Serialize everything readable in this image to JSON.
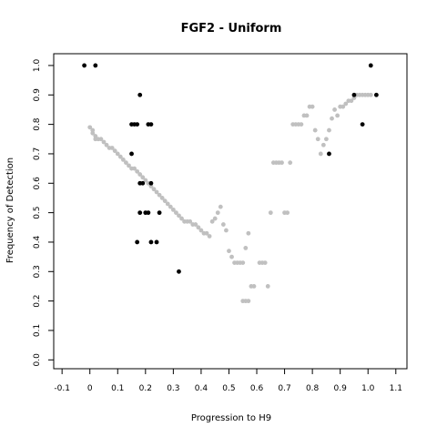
{
  "chart_data": {
    "type": "scatter",
    "title": "FGF2 - Uniform",
    "xlabel": "Progression to H9",
    "ylabel": "Frequency of Detection",
    "xlim": [
      -0.13,
      1.14
    ],
    "ylim": [
      -0.03,
      1.04
    ],
    "xticks": [
      "-0.1",
      "0",
      "0.1",
      "0.2",
      "0.3",
      "0.4",
      "0.5",
      "0.6",
      "0.7",
      "0.8",
      "0.9",
      "1.0",
      "1.1"
    ],
    "yticks": [
      "0.0",
      "0.1",
      "0.2",
      "0.3",
      "0.4",
      "0.5",
      "0.6",
      "0.7",
      "0.8",
      "0.9",
      "1.0"
    ],
    "grid": false,
    "legend": "none",
    "series": [
      {
        "color": "#c0c0c0",
        "points": [
          [
            0.0,
            0.79
          ],
          [
            0.01,
            0.78
          ],
          [
            0.01,
            0.77
          ],
          [
            0.02,
            0.76
          ],
          [
            0.02,
            0.75
          ],
          [
            0.03,
            0.75
          ],
          [
            0.04,
            0.75
          ],
          [
            0.05,
            0.74
          ],
          [
            0.06,
            0.73
          ],
          [
            0.07,
            0.72
          ],
          [
            0.08,
            0.72
          ],
          [
            0.09,
            0.71
          ],
          [
            0.1,
            0.7
          ],
          [
            0.11,
            0.69
          ],
          [
            0.12,
            0.68
          ],
          [
            0.13,
            0.67
          ],
          [
            0.14,
            0.66
          ],
          [
            0.15,
            0.65
          ],
          [
            0.16,
            0.65
          ],
          [
            0.17,
            0.64
          ],
          [
            0.18,
            0.63
          ],
          [
            0.19,
            0.62
          ],
          [
            0.2,
            0.61
          ],
          [
            0.21,
            0.6
          ],
          [
            0.22,
            0.59
          ],
          [
            0.23,
            0.58
          ],
          [
            0.24,
            0.57
          ],
          [
            0.25,
            0.56
          ],
          [
            0.26,
            0.55
          ],
          [
            0.27,
            0.54
          ],
          [
            0.28,
            0.53
          ],
          [
            0.29,
            0.52
          ],
          [
            0.3,
            0.51
          ],
          [
            0.31,
            0.5
          ],
          [
            0.32,
            0.49
          ],
          [
            0.33,
            0.48
          ],
          [
            0.34,
            0.47
          ],
          [
            0.35,
            0.47
          ],
          [
            0.36,
            0.47
          ],
          [
            0.37,
            0.46
          ],
          [
            0.38,
            0.46
          ],
          [
            0.39,
            0.45
          ],
          [
            0.4,
            0.44
          ],
          [
            0.41,
            0.43
          ],
          [
            0.42,
            0.43
          ],
          [
            0.43,
            0.42
          ],
          [
            0.44,
            0.47
          ],
          [
            0.45,
            0.48
          ],
          [
            0.46,
            0.5
          ],
          [
            0.47,
            0.52
          ],
          [
            0.48,
            0.46
          ],
          [
            0.49,
            0.44
          ],
          [
            0.5,
            0.37
          ],
          [
            0.51,
            0.35
          ],
          [
            0.52,
            0.33
          ],
          [
            0.53,
            0.33
          ],
          [
            0.54,
            0.33
          ],
          [
            0.55,
            0.33
          ],
          [
            0.56,
            0.38
          ],
          [
            0.57,
            0.43
          ],
          [
            0.55,
            0.2
          ],
          [
            0.56,
            0.2
          ],
          [
            0.57,
            0.2
          ],
          [
            0.58,
            0.25
          ],
          [
            0.59,
            0.25
          ],
          [
            0.61,
            0.33
          ],
          [
            0.62,
            0.33
          ],
          [
            0.63,
            0.33
          ],
          [
            0.64,
            0.25
          ],
          [
            0.65,
            0.5
          ],
          [
            0.66,
            0.67
          ],
          [
            0.67,
            0.67
          ],
          [
            0.68,
            0.67
          ],
          [
            0.69,
            0.67
          ],
          [
            0.7,
            0.5
          ],
          [
            0.71,
            0.5
          ],
          [
            0.72,
            0.67
          ],
          [
            0.73,
            0.8
          ],
          [
            0.74,
            0.8
          ],
          [
            0.75,
            0.8
          ],
          [
            0.76,
            0.8
          ],
          [
            0.77,
            0.83
          ],
          [
            0.78,
            0.83
          ],
          [
            0.79,
            0.86
          ],
          [
            0.8,
            0.86
          ],
          [
            0.81,
            0.78
          ],
          [
            0.82,
            0.75
          ],
          [
            0.83,
            0.7
          ],
          [
            0.84,
            0.73
          ],
          [
            0.85,
            0.75
          ],
          [
            0.86,
            0.78
          ],
          [
            0.87,
            0.82
          ],
          [
            0.88,
            0.85
          ],
          [
            0.89,
            0.83
          ],
          [
            0.9,
            0.86
          ],
          [
            0.91,
            0.86
          ],
          [
            0.92,
            0.87
          ],
          [
            0.93,
            0.88
          ],
          [
            0.94,
            0.88
          ],
          [
            0.95,
            0.89
          ],
          [
            0.96,
            0.9
          ],
          [
            0.97,
            0.9
          ],
          [
            0.98,
            0.9
          ],
          [
            0.99,
            0.9
          ],
          [
            1.0,
            0.9
          ],
          [
            1.01,
            0.9
          ]
        ]
      },
      {
        "color": "#000000",
        "points": [
          [
            -0.02,
            1.0
          ],
          [
            0.02,
            1.0
          ],
          [
            0.15,
            0.8
          ],
          [
            0.16,
            0.8
          ],
          [
            0.17,
            0.8
          ],
          [
            0.18,
            0.9
          ],
          [
            0.21,
            0.8
          ],
          [
            0.22,
            0.8
          ],
          [
            0.15,
            0.7
          ],
          [
            0.18,
            0.6
          ],
          [
            0.19,
            0.6
          ],
          [
            0.22,
            0.6
          ],
          [
            0.18,
            0.5
          ],
          [
            0.2,
            0.5
          ],
          [
            0.21,
            0.5
          ],
          [
            0.25,
            0.5
          ],
          [
            0.17,
            0.4
          ],
          [
            0.22,
            0.4
          ],
          [
            0.24,
            0.4
          ],
          [
            0.32,
            0.3
          ],
          [
            0.86,
            0.7
          ],
          [
            0.95,
            0.9
          ],
          [
            0.98,
            0.8
          ],
          [
            1.01,
            1.0
          ],
          [
            1.03,
            0.9
          ]
        ]
      }
    ]
  }
}
